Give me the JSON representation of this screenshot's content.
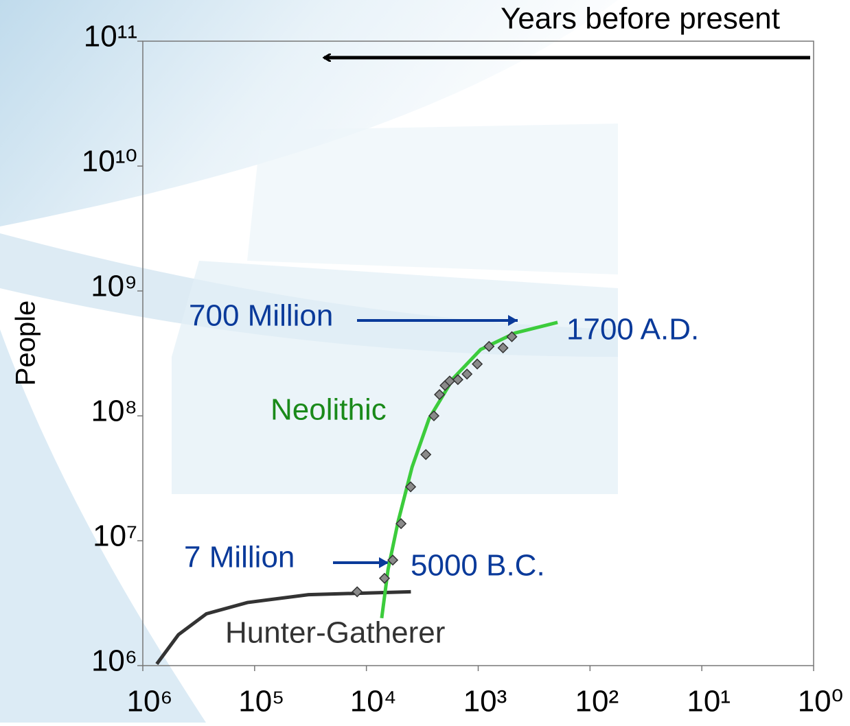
{
  "chart_data": {
    "type": "line",
    "ylabel": "People",
    "xscale": "log",
    "yscale": "log",
    "xlim": [
      1000000,
      1
    ],
    "ylim": [
      1000000,
      100000000000
    ],
    "xticks": [
      {
        "value": 1000000,
        "label": "10⁶"
      },
      {
        "value": 100000,
        "label": "10⁵"
      },
      {
        "value": 10000,
        "label": "10⁴"
      },
      {
        "value": 1000,
        "label": "10³"
      },
      {
        "value": 100,
        "label": "10²"
      },
      {
        "value": 10,
        "label": "10¹"
      },
      {
        "value": 1,
        "label": "10⁰"
      }
    ],
    "yticks": [
      {
        "value": 1000000,
        "label": "10⁶"
      },
      {
        "value": 10000000,
        "label": "10⁷"
      },
      {
        "value": 100000000,
        "label": "10⁸"
      },
      {
        "value": 1000000000,
        "label": "10⁹"
      },
      {
        "value": 10000000000,
        "label": "10¹⁰"
      },
      {
        "value": 100000000000,
        "label": "10¹¹"
      }
    ],
    "series": [
      {
        "name": "Hunter-Gatherer",
        "color": "#333333",
        "x": [
          750000,
          480000,
          270000,
          116000,
          33000,
          4000
        ],
        "values": [
          1030000,
          1770000,
          2600000,
          3200000,
          3700000,
          3900000
        ]
      },
      {
        "name": "Neolithic",
        "color": "#3ccc3c",
        "x": [
          7300,
          6400,
          5200,
          3900,
          2750,
          1670,
          950,
          470,
          195
        ],
        "values": [
          2400000,
          5900000,
          14300000,
          39000000,
          95000000,
          200000000,
          340000000,
          460000000,
          560000000
        ]
      },
      {
        "type": "scatter",
        "color": "#8a8a8a",
        "x": [
          12100,
          6890,
          5810,
          4900,
          4020,
          2940,
          2490,
          2220,
          1980,
          1800,
          1520,
          1260,
          1020,
          800,
          600,
          500
        ],
        "values": [
          3900000,
          5000000,
          7000000,
          13700000,
          27000000,
          49000000,
          100000000,
          148000000,
          175000000,
          190000000,
          195000000,
          216000000,
          260000000,
          360000000,
          350000000,
          430000000
        ]
      }
    ],
    "annotations": [
      "Years before present",
      "700 Million",
      "1700 A.D.",
      "7 Million",
      "5000 B.C."
    ]
  }
}
